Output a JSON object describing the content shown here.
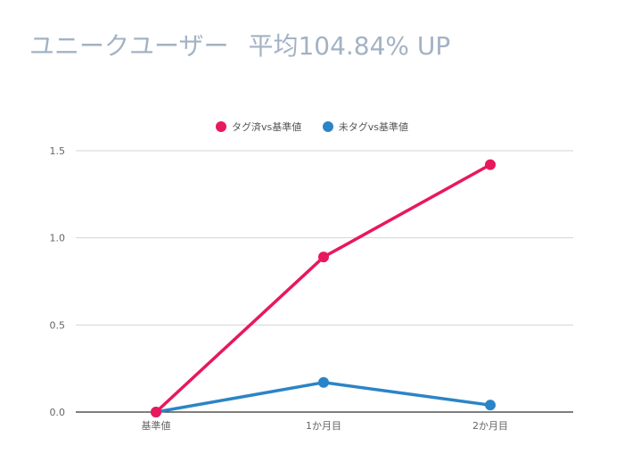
{
  "title": {
    "main": "ユニークユーザー",
    "sub": "平均104.84% UP"
  },
  "colors": {
    "title": "#a3b2c4",
    "grid": "#cfd6da",
    "axis": "#333333"
  },
  "chart_data": {
    "type": "line",
    "categories": [
      "基準値",
      "1か月目",
      "2か月目"
    ],
    "ylim": [
      0,
      1.5
    ],
    "yticks": [
      "0.0",
      "0.5",
      "1.0",
      "1.5"
    ],
    "ytick_values": [
      0,
      0.5,
      1.0,
      1.5
    ],
    "legend_position": "top-center",
    "grid": true,
    "series": [
      {
        "name": "タグ済vs基準値",
        "color": "#e8185c",
        "values": [
          0,
          0.89,
          1.42
        ]
      },
      {
        "name": "未タグvs基準値",
        "color": "#2b84c6",
        "values": [
          0,
          0.17,
          0.04
        ]
      }
    ]
  }
}
